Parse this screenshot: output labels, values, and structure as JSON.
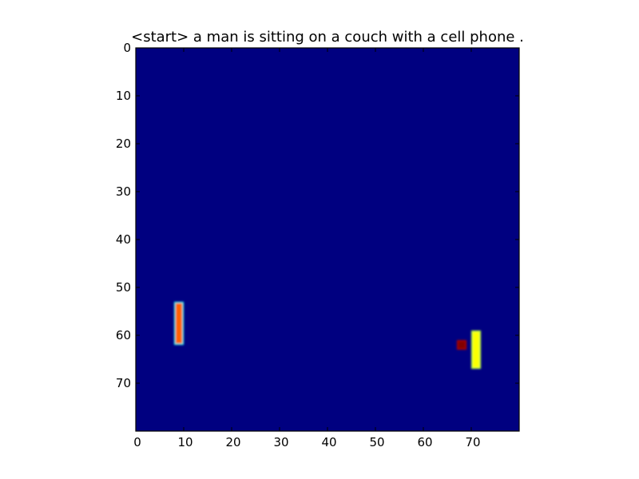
{
  "chart_data": {
    "type": "heatmap",
    "title": "<start> a man is sitting on a couch with a cell phone .",
    "xlabel": "",
    "ylabel": "",
    "xlim": [
      0,
      80
    ],
    "ylim": [
      0,
      80
    ],
    "y_inverted": true,
    "grid": false,
    "colormap": "jet",
    "background_value": 0.0,
    "x_ticks": [
      0,
      10,
      20,
      30,
      40,
      50,
      60,
      70
    ],
    "y_ticks": [
      0,
      10,
      20,
      30,
      40,
      50,
      60,
      70
    ],
    "colors": {
      "background": "#000080",
      "high_orange": "#ff6a00",
      "edge_cyan": "#2de0e6",
      "high_yellowgreen": "#c8ff3a",
      "peak_darkred": "#800000"
    },
    "regions": [
      {
        "name": "left-bar",
        "x": [
          8,
          10
        ],
        "y": [
          53,
          62
        ],
        "value": 0.78,
        "edge_value": 0.38
      },
      {
        "name": "right-bar",
        "x": [
          70,
          72
        ],
        "y": [
          59,
          67
        ],
        "value": 0.62,
        "edge_value": 0.55
      },
      {
        "name": "peak-square",
        "x": [
          67,
          69
        ],
        "y": [
          61,
          63
        ],
        "value": 1.0,
        "edge_value": 0.95
      }
    ]
  }
}
